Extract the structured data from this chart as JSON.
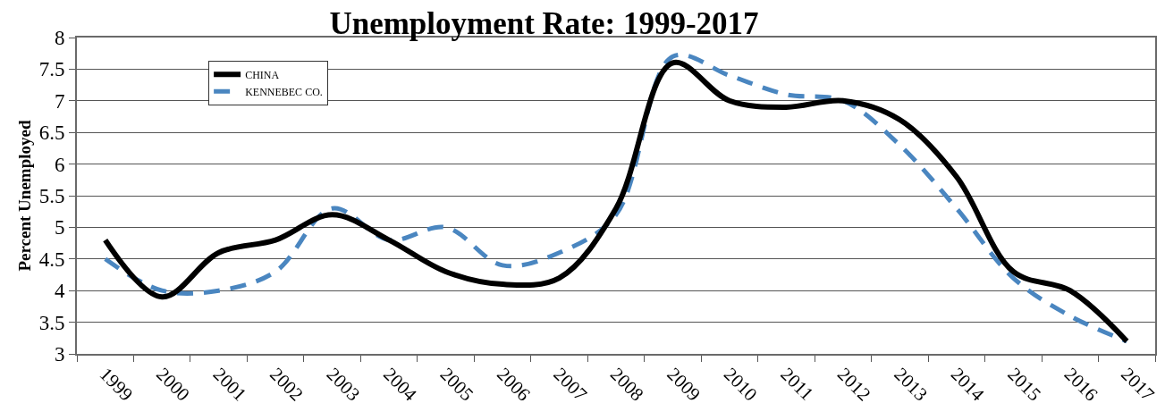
{
  "chart_data": {
    "type": "line",
    "title": "Unemployment Rate: 1999-2017",
    "ylabel": "Percent Unemployed",
    "categories": [
      "1999",
      "2000",
      "2001",
      "2002",
      "2003",
      "2004",
      "2005",
      "2006",
      "2007",
      "2008",
      "2009",
      "2010",
      "2011",
      "2012",
      "2013",
      "2014",
      "2015",
      "2016",
      "2017"
    ],
    "series": [
      {
        "name": "CHINA",
        "color": "#000000",
        "line_style": "solid",
        "values": [
          4.8,
          3.9,
          4.6,
          4.8,
          5.2,
          4.8,
          4.3,
          4.1,
          4.2,
          5.3,
          7.6,
          7.0,
          6.9,
          7.0,
          6.7,
          5.8,
          4.3,
          4.0,
          3.2
        ]
      },
      {
        "name": "KENNEBEC CO.",
        "color": "#4a86c0",
        "line_style": "dashed",
        "values": [
          4.5,
          4.0,
          4.0,
          4.3,
          5.3,
          4.8,
          5.0,
          4.4,
          4.6,
          5.2,
          7.7,
          7.4,
          7.1,
          7.0,
          6.3,
          5.3,
          4.2,
          3.6,
          3.2
        ]
      }
    ],
    "ylim": [
      3,
      8
    ],
    "yticks": [
      3,
      3.5,
      4,
      4.5,
      5,
      5.5,
      6,
      6.5,
      7,
      7.5,
      8
    ],
    "grid": "y",
    "legend": "top left",
    "marker": "none"
  }
}
